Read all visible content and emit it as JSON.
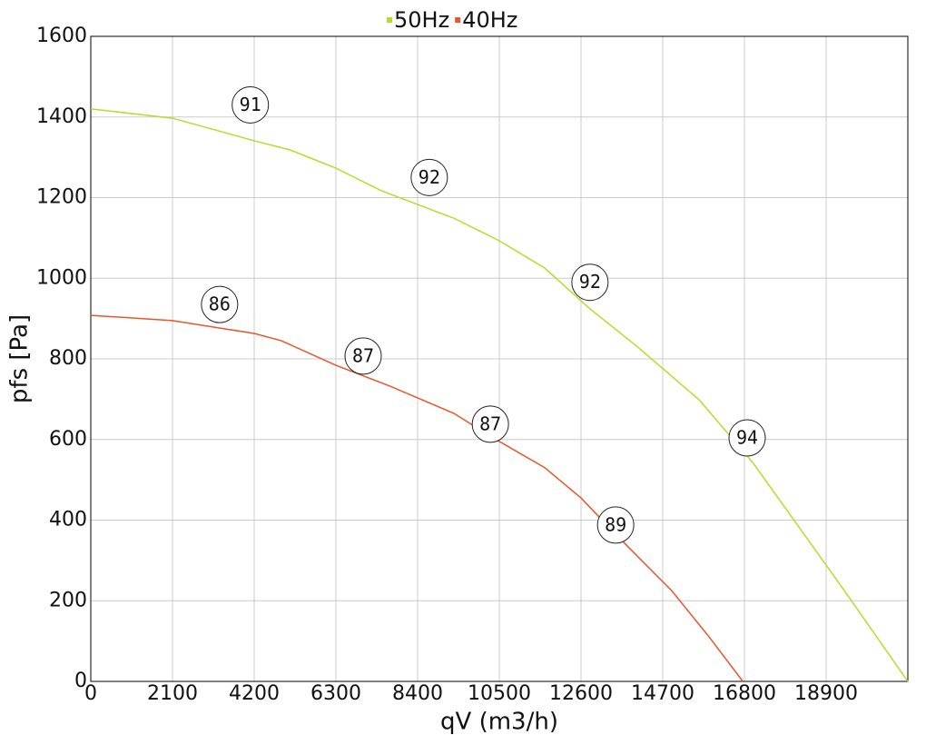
{
  "chart_data": {
    "type": "line",
    "x_label": "qV (m3/h)",
    "y_label": "pfs [Pa]",
    "xlim": [
      0,
      21000
    ],
    "ylim": [
      0,
      1600
    ],
    "xticks": [
      0,
      2100,
      4200,
      6300,
      8400,
      10500,
      12600,
      14700,
      16800,
      18900
    ],
    "yticks": [
      0,
      200,
      400,
      600,
      800,
      1000,
      1200,
      1400,
      1600
    ],
    "grid": true,
    "legend": "top",
    "series": [
      {
        "name": "50Hz",
        "color": "#b5dc2a",
        "x": [
          0,
          2100,
          4200,
          5130,
          6300,
          7470,
          9330,
          10500,
          11670,
          12830,
          14000,
          15630,
          17030,
          18200,
          19370,
          21000
        ],
        "values": [
          1420,
          1397,
          1341,
          1318,
          1273,
          1217,
          1149,
          1093,
          1025,
          924,
          834,
          699,
          541,
          383,
          225,
          0
        ],
        "annotations": [
          {
            "x": 4100,
            "y": 1430,
            "label": 91
          },
          {
            "x": 8700,
            "y": 1250,
            "label": 92
          },
          {
            "x": 12830,
            "y": 990,
            "label": 92
          },
          {
            "x": 16870,
            "y": 604,
            "label": 94
          }
        ]
      },
      {
        "name": "40Hz",
        "color": "#e8562a",
        "x": [
          0,
          2100,
          4200,
          4900,
          6300,
          7700,
          9330,
          10270,
          11670,
          12600,
          13530,
          14930,
          15870,
          16760
        ],
        "values": [
          908,
          895,
          863,
          845,
          784,
          732,
          665,
          608,
          530,
          455,
          361,
          225,
          113,
          0
        ],
        "annotations": [
          {
            "x": 3310,
            "y": 935,
            "label": 86
          },
          {
            "x": 7000,
            "y": 807,
            "label": 87
          },
          {
            "x": 10270,
            "y": 638,
            "label": 87
          },
          {
            "x": 13490,
            "y": 388,
            "label": 89
          }
        ]
      }
    ]
  }
}
